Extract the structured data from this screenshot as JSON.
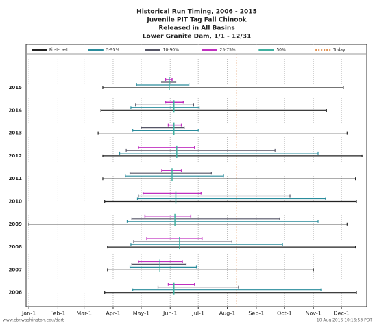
{
  "chart_data": {
    "type": "range",
    "title": [
      "Historical Run Timing, 2006 - 2015",
      "Juvenile PIT Tag Fall Chinook",
      "Released in All Basins",
      "Lower Granite Dam, 1/1 - 12/31"
    ],
    "categories": [
      "2015",
      "2014",
      "2013",
      "2012",
      "2011",
      "2010",
      "2009",
      "2008",
      "2007",
      "2006"
    ],
    "series": [
      {
        "name": "First-Last",
        "color": "#222222",
        "start": [
          80,
          78,
          75,
          80,
          80,
          82,
          1,
          85,
          85,
          82
        ],
        "end": [
          337,
          319,
          341,
          357,
          350,
          351,
          341,
          350,
          305,
          351
        ]
      },
      {
        "name": "5-95%",
        "color": "#2a8c9c",
        "start": [
          116,
          110,
          112,
          98,
          104,
          117,
          106,
          110,
          109,
          112
        ],
        "end": [
          172,
          183,
          182,
          310,
          209,
          318,
          310,
          272,
          180,
          313
        ]
      },
      {
        "name": "10-90%",
        "color": "#555566",
        "start": [
          143,
          115,
          121,
          105,
          109,
          118,
          111,
          113,
          111,
          139
        ],
        "end": [
          158,
          177,
          167,
          264,
          196,
          280,
          269,
          218,
          169,
          225
        ]
      },
      {
        "name": "25-75%",
        "color": "#c030c0",
        "start": [
          147,
          147,
          150,
          118,
          143,
          123,
          125,
          127,
          118,
          150
        ],
        "end": [
          154,
          166,
          164,
          178,
          164,
          185,
          174,
          186,
          165,
          178
        ]
      },
      {
        "name": "50%",
        "color": "#40b0a0",
        "values": [
          151,
          156,
          156,
          159,
          154,
          158,
          157,
          162,
          141,
          156
        ]
      }
    ],
    "today": {
      "name": "Today",
      "value": 223,
      "color": "#e09050"
    },
    "xlim": [
      -2,
      362
    ],
    "xticks": [
      {
        "value": 1,
        "label": "Jan-1"
      },
      {
        "value": 32,
        "label": "Feb-1"
      },
      {
        "value": 60,
        "label": "Mar-1"
      },
      {
        "value": 91,
        "label": "Apr-1"
      },
      {
        "value": 121,
        "label": "May-1"
      },
      {
        "value": 152,
        "label": "Jun-1"
      },
      {
        "value": 182,
        "label": "Jul-1"
      },
      {
        "value": 213,
        "label": "Aug-1"
      },
      {
        "value": 244,
        "label": "Sep-1"
      },
      {
        "value": 274,
        "label": "Oct-1"
      },
      {
        "value": 305,
        "label": "Nov-1"
      },
      {
        "value": 335,
        "label": "Dec-1"
      }
    ],
    "grid": true,
    "footer_left": "www.cbr.washington.edu/dart",
    "footer_right": "10 Aug 2016 10:16:53 PDT"
  }
}
